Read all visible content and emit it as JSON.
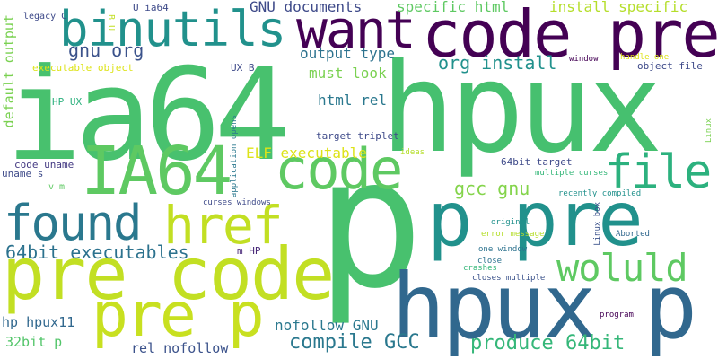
{
  "words": [
    {
      "text": "ia64",
      "color": "#48c16e"
    },
    {
      "text": "hpux",
      "color": "#46c06f"
    },
    {
      "text": "p",
      "color": "#48c16e"
    },
    {
      "text": "code pre",
      "color": "#440154"
    },
    {
      "text": "hpux p",
      "color": "#31688e"
    },
    {
      "text": "pre code",
      "color": "#c2df23"
    },
    {
      "text": "p pre",
      "color": "#21918c"
    },
    {
      "text": "binutils",
      "color": "#21918c"
    },
    {
      "text": "want",
      "color": "#440154"
    },
    {
      "text": "IA64",
      "color": "#5ec962"
    },
    {
      "text": "code",
      "color": "#5ec962"
    },
    {
      "text": "pre p",
      "color": "#c8e020"
    },
    {
      "text": "found",
      "color": "#2a788e"
    },
    {
      "text": "href",
      "color": "#c2df23"
    },
    {
      "text": "file",
      "color": "#2cb17e"
    },
    {
      "text": "woluld",
      "color": "#5ec962"
    },
    {
      "text": "64bit executables",
      "color": "#2c728e"
    },
    {
      "text": "compile GCC",
      "color": "#2a788e"
    },
    {
      "text": "produce 64bit",
      "color": "#35b779"
    },
    {
      "text": "gcc gnu",
      "color": "#84d44b"
    },
    {
      "text": "gnu org",
      "color": "#3b528b"
    },
    {
      "text": "org install",
      "color": "#21918c"
    },
    {
      "text": "GNU documents",
      "color": "#3e4a89"
    },
    {
      "text": "specific html",
      "color": "#5ec962"
    },
    {
      "text": "install specific",
      "color": "#b5de2b"
    },
    {
      "text": "output type",
      "color": "#2c728e"
    },
    {
      "text": "must look",
      "color": "#7ad151"
    },
    {
      "text": "html rel",
      "color": "#2a788e"
    },
    {
      "text": "ELF executable",
      "color": "#dde318"
    },
    {
      "text": "nofollow GNU",
      "color": "#2a788e"
    },
    {
      "text": "hp hpux11",
      "color": "#31688e"
    },
    {
      "text": "32bit p",
      "color": "#52c569"
    },
    {
      "text": "rel nofollow",
      "color": "#3b528b"
    },
    {
      "text": "default output",
      "color": "#7ad151"
    },
    {
      "text": "U ia64",
      "color": "#3e4a89"
    },
    {
      "text": "legacy C",
      "color": "#3e4a89"
    },
    {
      "text": "B U",
      "color": "#c2df23"
    },
    {
      "text": "executable object",
      "color": "#dde318"
    },
    {
      "text": "UX B",
      "color": "#3e4a89"
    },
    {
      "text": "HP UX",
      "color": "#2cb17e"
    },
    {
      "text": "application opens",
      "color": "#2a788e"
    },
    {
      "text": "target triplet",
      "color": "#3e4a89"
    },
    {
      "text": "code uname",
      "color": "#443a83"
    },
    {
      "text": "uname s",
      "color": "#3e4a89"
    },
    {
      "text": "v m",
      "color": "#5ec962"
    },
    {
      "text": "ideas",
      "color": "#b5de2b"
    },
    {
      "text": "curses windows",
      "color": "#3e4a89"
    },
    {
      "text": "m HP",
      "color": "#482878"
    },
    {
      "text": "64bit target",
      "color": "#3e4a89"
    },
    {
      "text": "multiple curses",
      "color": "#35b779"
    },
    {
      "text": "recently compiled",
      "color": "#21918c"
    },
    {
      "text": "original",
      "color": "#21918c"
    },
    {
      "text": "error message",
      "color": "#b5de2b"
    },
    {
      "text": "Linux box",
      "color": "#3b528b"
    },
    {
      "text": "Aborted",
      "color": "#31688e"
    },
    {
      "text": "one window",
      "color": "#2c728e"
    },
    {
      "text": "close",
      "color": "#2c728e"
    },
    {
      "text": "crashes",
      "color": "#35b779"
    },
    {
      "text": "closes multiple",
      "color": "#3b528b"
    },
    {
      "text": "program",
      "color": "#440154"
    },
    {
      "text": "window",
      "color": "#440154"
    },
    {
      "text": "handle one",
      "color": "#dde318"
    },
    {
      "text": "object file",
      "color": "#3e4a89"
    },
    {
      "text": "Linux",
      "color": "#7ad151"
    }
  ]
}
